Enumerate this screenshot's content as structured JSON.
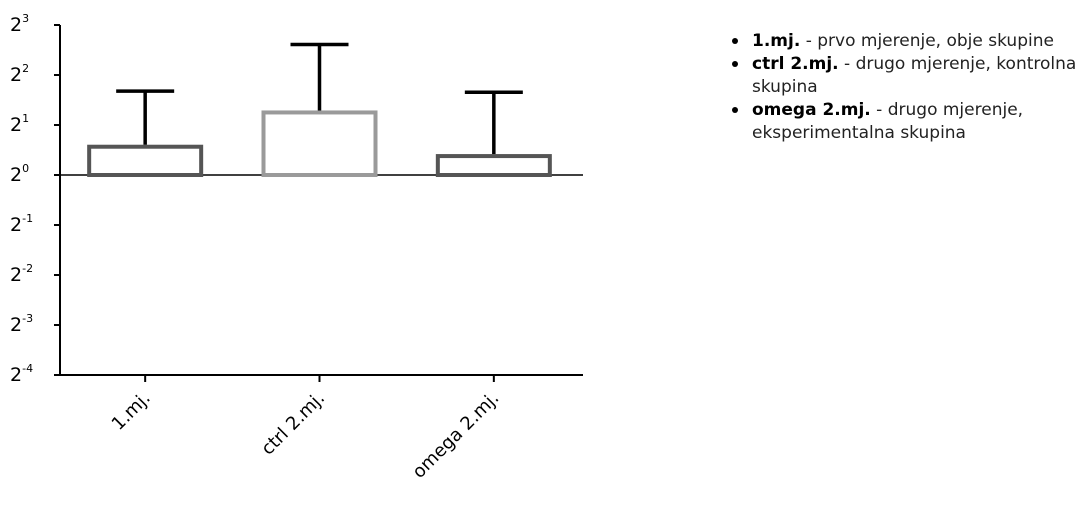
{
  "chart_data": {
    "type": "bar",
    "yscale": "log2",
    "categories": [
      "1.mj.",
      "ctrl 2.mj.",
      "omega 2.mj."
    ],
    "values": [
      1.48,
      2.38,
      1.3
    ],
    "error_upper": [
      3.2,
      6.1,
      3.15
    ],
    "bar_colors": [
      "#555555",
      "#9a9a9a",
      "#555555"
    ],
    "ylim": [
      0.0625,
      8
    ],
    "ytick_labels": [
      {
        "base": "2",
        "exp": "3"
      },
      {
        "base": "2",
        "exp": "2"
      },
      {
        "base": "2",
        "exp": "1"
      },
      {
        "base": "2",
        "exp": "0"
      },
      {
        "base": "2",
        "exp": "-1"
      },
      {
        "base": "2",
        "exp": "-2"
      },
      {
        "base": "2",
        "exp": "-3"
      },
      {
        "base": "2",
        "exp": "-4"
      }
    ],
    "grid": false
  },
  "legend": [
    {
      "bold": "1.mj.",
      "text": " - prvo mjerenje, obje skupine"
    },
    {
      "bold": "ctrl 2.mj.",
      "text": " - drugo mjerenje, kontrolna skupina"
    },
    {
      "bold": "omega 2.mj.",
      "text": " - drugo mjerenje, eksperimentalna skupina"
    }
  ]
}
